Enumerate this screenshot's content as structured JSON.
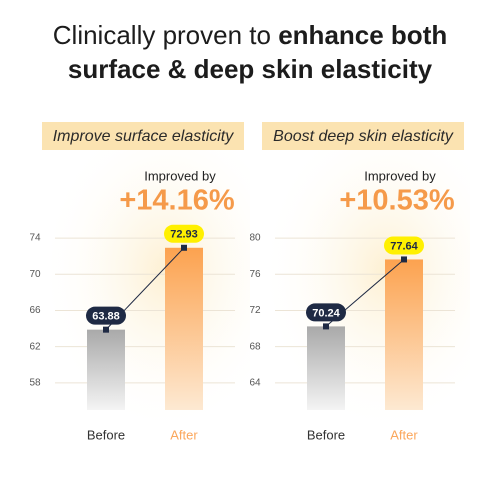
{
  "title": "Clinically proven to",
  "title_emphasis": [
    "enhance both",
    "surface & deep skin elasticity"
  ],
  "chart_data": [
    {
      "type": "bar",
      "subtitle": "Improve surface elasticity",
      "annotation": "Improved by",
      "change_label": "+14.16%",
      "categories": [
        "Before",
        "After"
      ],
      "values": [
        63.88,
        72.93
      ],
      "colors": [
        "#b9b9b9",
        "#fba75c"
      ],
      "ylim": [
        55,
        76
      ],
      "yticks": [
        58,
        62,
        66,
        70,
        74
      ],
      "grid": true
    },
    {
      "type": "bar",
      "subtitle": "Boost deep skin elasticity",
      "annotation": "Improved by",
      "change_label": "+10.53%",
      "categories": [
        "Before",
        "After"
      ],
      "values": [
        70.24,
        77.64
      ],
      "colors": [
        "#b9b9b9",
        "#fba75c"
      ],
      "ylim": [
        61,
        82
      ],
      "yticks": [
        64,
        68,
        72,
        76,
        80
      ],
      "grid": true
    }
  ]
}
